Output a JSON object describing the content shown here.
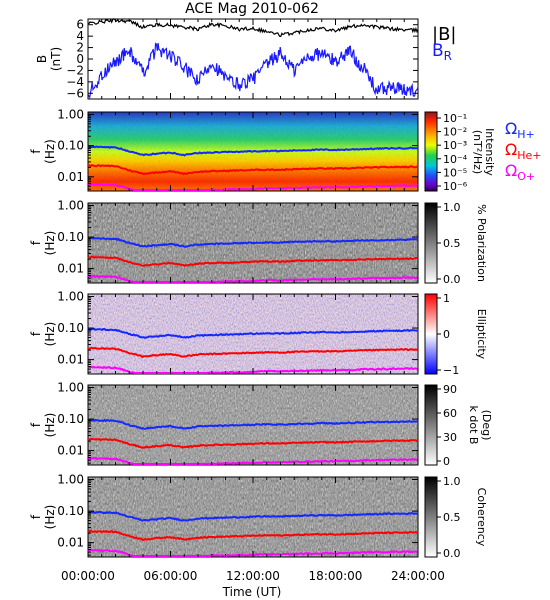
{
  "figure": {
    "title": "ACE Mag 2010-062",
    "xlabel": "Time (UT)",
    "xticks": [
      "00:00:00",
      "06:00:00",
      "12:00:00",
      "18:00:00",
      "24:00:00"
    ],
    "colors": {
      "B_total": "#000000",
      "B_R": "#1a1aff",
      "H": "#1428ff",
      "He": "#ff0000",
      "O": "#ff00ff"
    }
  },
  "legend": {
    "B_total": "|B|",
    "B_R_base": "B",
    "B_R_sub": "R",
    "omega": "Ω",
    "H_sub": "H+",
    "He_sub": "He+",
    "O_sub": "O+"
  },
  "panels": {
    "mag": {
      "ylabel_top": "B",
      "ylabel_bottom": "(nT)",
      "yticks": [
        "6",
        "4",
        "2",
        "0",
        "−2",
        "−4",
        "−6"
      ]
    },
    "freq_ylabel_top": "f",
    "freq_ylabel_bottom": "(Hz)",
    "freq_yticks": [
      "1.00",
      "0.10",
      "0.01"
    ],
    "intensity": {
      "cbar_label": "Intensity",
      "cbar_unit": "(nT²/Hz)",
      "cbar_ticks": [
        "10⁻¹",
        "10⁻²",
        "10⁻³",
        "10⁻⁴",
        "10⁻⁵",
        "10⁻⁶"
      ]
    },
    "polarization": {
      "cbar_label": "% Polarization",
      "cbar_ticks": [
        "1.0",
        "0.5",
        "0.0"
      ]
    },
    "ellipticity": {
      "cbar_label": "Ellipticity",
      "cbar_ticks": [
        "1",
        "0",
        "−1"
      ]
    },
    "kdotb": {
      "cbar_label": "k dot B",
      "cbar_unit": "(Deg)",
      "cbar_ticks": [
        "90",
        "60",
        "30",
        "0"
      ]
    },
    "coherency": {
      "cbar_label": "Coherency",
      "cbar_ticks": [
        "1.0",
        "0.5",
        "0.0"
      ]
    }
  },
  "chart_data": {
    "type": "line",
    "title": "ACE Mag 2010-062",
    "xlabel": "Time (UT)",
    "x_range_hours": [
      0,
      24
    ],
    "mag_ylim": [
      -7,
      7
    ],
    "freq_ylim_hz": [
      0.0035,
      1.2
    ],
    "freq_scale": "log",
    "series": [
      {
        "name": "|B|",
        "panel": "mag",
        "x": [
          0,
          1,
          2,
          3,
          4,
          5,
          6,
          7,
          8,
          9,
          10,
          11,
          12,
          13,
          14,
          15,
          16,
          17,
          18,
          19,
          20,
          21,
          22,
          23,
          24
        ],
        "values": [
          6.2,
          6.5,
          6.8,
          6.6,
          5.6,
          6.0,
          5.9,
          5.6,
          5.2,
          6.1,
          5.8,
          5.2,
          5.4,
          4.8,
          4.2,
          4.6,
          5.1,
          5.4,
          5.0,
          5.6,
          6.0,
          5.6,
          5.3,
          5.1,
          5.0
        ]
      },
      {
        "name": "B_R",
        "panel": "mag",
        "x": [
          0,
          1,
          2,
          3,
          4,
          5,
          6,
          7,
          8,
          9,
          10,
          11,
          12,
          13,
          14,
          15,
          16,
          17,
          18,
          19,
          20,
          21,
          22,
          23,
          24
        ],
        "values": [
          -6.0,
          -3.0,
          -0.5,
          1.5,
          -2.5,
          2.0,
          0.5,
          -1.5,
          -4.0,
          -0.5,
          -3.5,
          -4.5,
          -3.5,
          -1.0,
          1.0,
          -2.0,
          0.5,
          1.0,
          -0.5,
          1.5,
          -1.5,
          -5.5,
          -5.0,
          -5.5,
          -5.5
        ]
      },
      {
        "name": "Ω H+",
        "panel": "frequency",
        "x": [
          0,
          1,
          2,
          3,
          4,
          5,
          6,
          7,
          8,
          9,
          10,
          11,
          12,
          13,
          14,
          15,
          16,
          17,
          18,
          19,
          20,
          21,
          22,
          23,
          24
        ],
        "values": [
          0.092,
          0.09,
          0.088,
          0.065,
          0.05,
          0.055,
          0.06,
          0.05,
          0.058,
          0.06,
          0.062,
          0.064,
          0.066,
          0.068,
          0.067,
          0.07,
          0.072,
          0.074,
          0.073,
          0.075,
          0.078,
          0.08,
          0.082,
          0.083,
          0.084
        ]
      },
      {
        "name": "Ω He+",
        "panel": "frequency",
        "x": [
          0,
          1,
          2,
          3,
          4,
          5,
          6,
          7,
          8,
          9,
          10,
          11,
          12,
          13,
          14,
          15,
          16,
          17,
          18,
          19,
          20,
          21,
          22,
          23,
          24
        ],
        "values": [
          0.023,
          0.0225,
          0.022,
          0.016,
          0.0125,
          0.0138,
          0.015,
          0.0125,
          0.0145,
          0.015,
          0.0155,
          0.016,
          0.0165,
          0.017,
          0.0168,
          0.0175,
          0.018,
          0.0185,
          0.0183,
          0.0188,
          0.0195,
          0.02,
          0.0205,
          0.0208,
          0.021
        ]
      },
      {
        "name": "Ω O+",
        "panel": "frequency",
        "x": [
          0,
          1,
          2,
          3,
          4,
          5,
          6,
          7,
          8,
          9,
          10,
          11,
          12,
          13,
          14,
          15,
          16,
          17,
          18,
          19,
          20,
          21,
          22,
          23,
          24
        ],
        "values": [
          0.0058,
          0.0056,
          0.0055,
          0.0041,
          0.0031,
          0.0034,
          0.0038,
          0.0031,
          0.0036,
          0.0038,
          0.0039,
          0.004,
          0.0041,
          0.0043,
          0.0042,
          0.0044,
          0.0045,
          0.0046,
          0.0046,
          0.0047,
          0.0049,
          0.005,
          0.0051,
          0.0052,
          0.0052
        ]
      }
    ]
  }
}
